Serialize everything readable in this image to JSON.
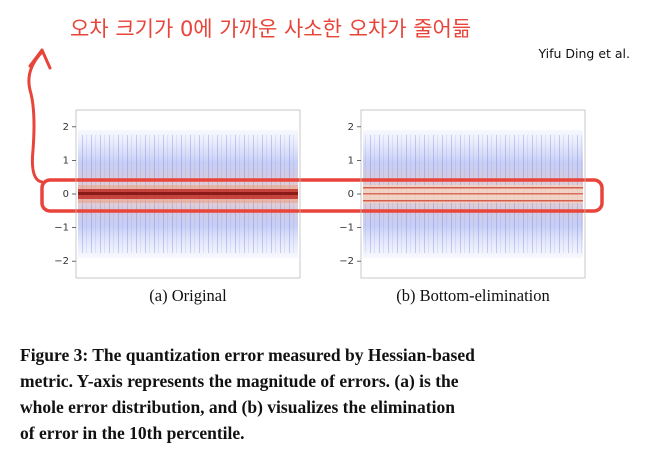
{
  "annotation": "오차 크기가 0에 가까운 사소한 오차가 줄어듦",
  "author": "Yifu Ding et al.",
  "chart_data": [
    {
      "type": "scatter",
      "caption": "(a) Original",
      "ylim": [
        -2.5,
        2.5
      ],
      "yticks": [
        {
          "value": -2,
          "label": "−2"
        },
        {
          "value": -1,
          "label": "−1"
        },
        0,
        1,
        2
      ]
    },
    {
      "type": "scatter",
      "caption": "(b) Bottom-elimination",
      "ylim": [
        -2.5,
        2.5
      ],
      "yticks": [
        {
          "value": -2,
          "label": "−2"
        },
        {
          "value": -1,
          "label": "−1"
        },
        0,
        1,
        2
      ]
    }
  ],
  "figure_caption": [
    "Figure 3: The quantization error measured by Hessian-based",
    "metric. Y-axis represents the magnitude of errors. (a) is the",
    "whole error distribution, and (b) visualizes the elimination",
    "of error in the 10th percentile."
  ]
}
